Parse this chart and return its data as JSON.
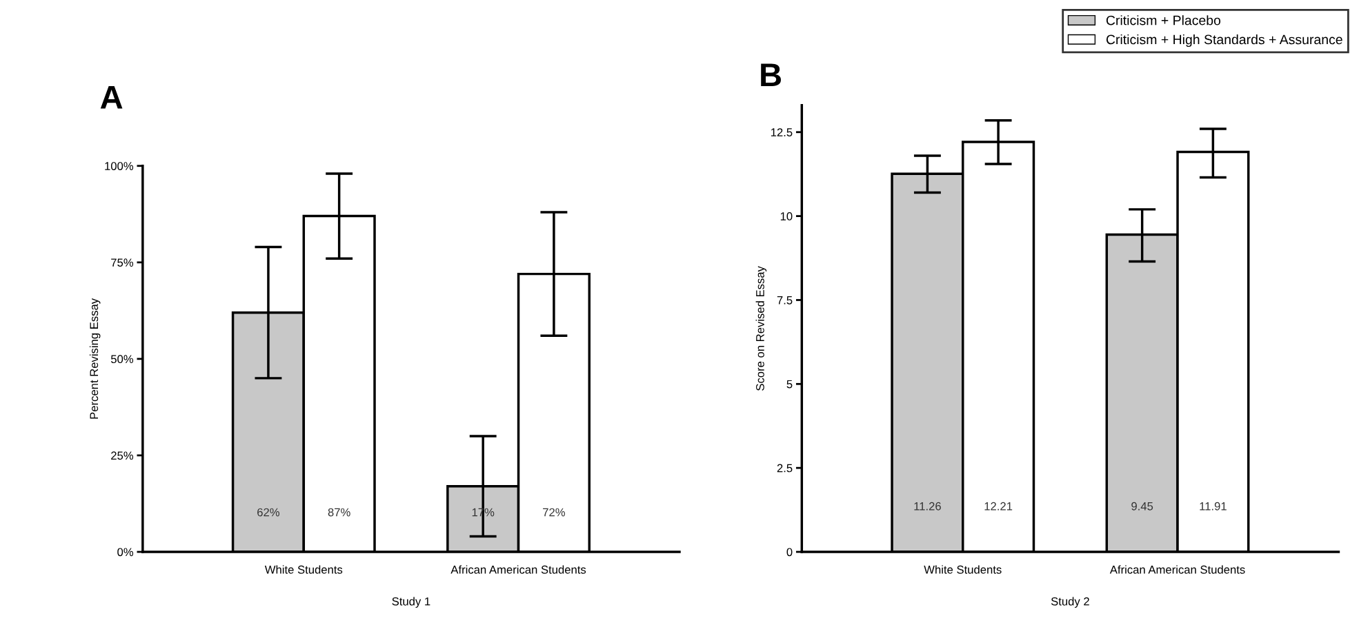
{
  "chart_data": [
    {
      "type": "bar",
      "title": "A",
      "xlabel": "Study 1",
      "ylabel": "Percent Revising Essay",
      "categories": [
        "White Students",
        "African American Students"
      ],
      "series": [
        {
          "color": "#c8c8c8",
          "values": [
            62,
            17
          ],
          "errors": [
            17,
            13
          ],
          "value_labels": [
            "62%",
            "17%"
          ]
        },
        {
          "color": "#ffffff",
          "values": [
            87,
            72
          ],
          "errors": [
            11,
            16
          ],
          "value_labels": [
            "87%",
            "72%"
          ]
        }
      ],
      "ylim": [
        0,
        100
      ],
      "yticks": [
        {
          "value": 0,
          "label": "0%"
        },
        {
          "value": 25,
          "label": "25%"
        },
        {
          "value": 50,
          "label": "50%"
        },
        {
          "value": 75,
          "label": "75%"
        },
        {
          "value": 100,
          "label": "100%"
        }
      ],
      "grid": false,
      "legend": false
    },
    {
      "type": "bar",
      "title": "B",
      "xlabel": "Study 2",
      "ylabel": "Score on Revised Essay",
      "categories": [
        "White Students",
        "African American Students"
      ],
      "series": [
        {
          "name": "Criticism + Placebo",
          "color": "#c8c8c8",
          "values": [
            11.26,
            9.45
          ],
          "errors": [
            [
              10.7,
              11.8
            ],
            [
              8.65,
              10.2
            ]
          ]
        },
        {
          "name": "Criticism + High Standards + Assurance",
          "color": "#ffffff",
          "values": [
            12.21,
            11.91
          ],
          "errors": [
            [
              11.55,
              12.85
            ],
            [
              11.15,
              12.6
            ]
          ]
        }
      ],
      "data_labels": true,
      "ylim": [
        0,
        13.3
      ],
      "yticks": [
        0,
        2.5,
        5,
        7.5,
        10,
        12.5
      ],
      "grid": false,
      "legend": "top right"
    }
  ]
}
